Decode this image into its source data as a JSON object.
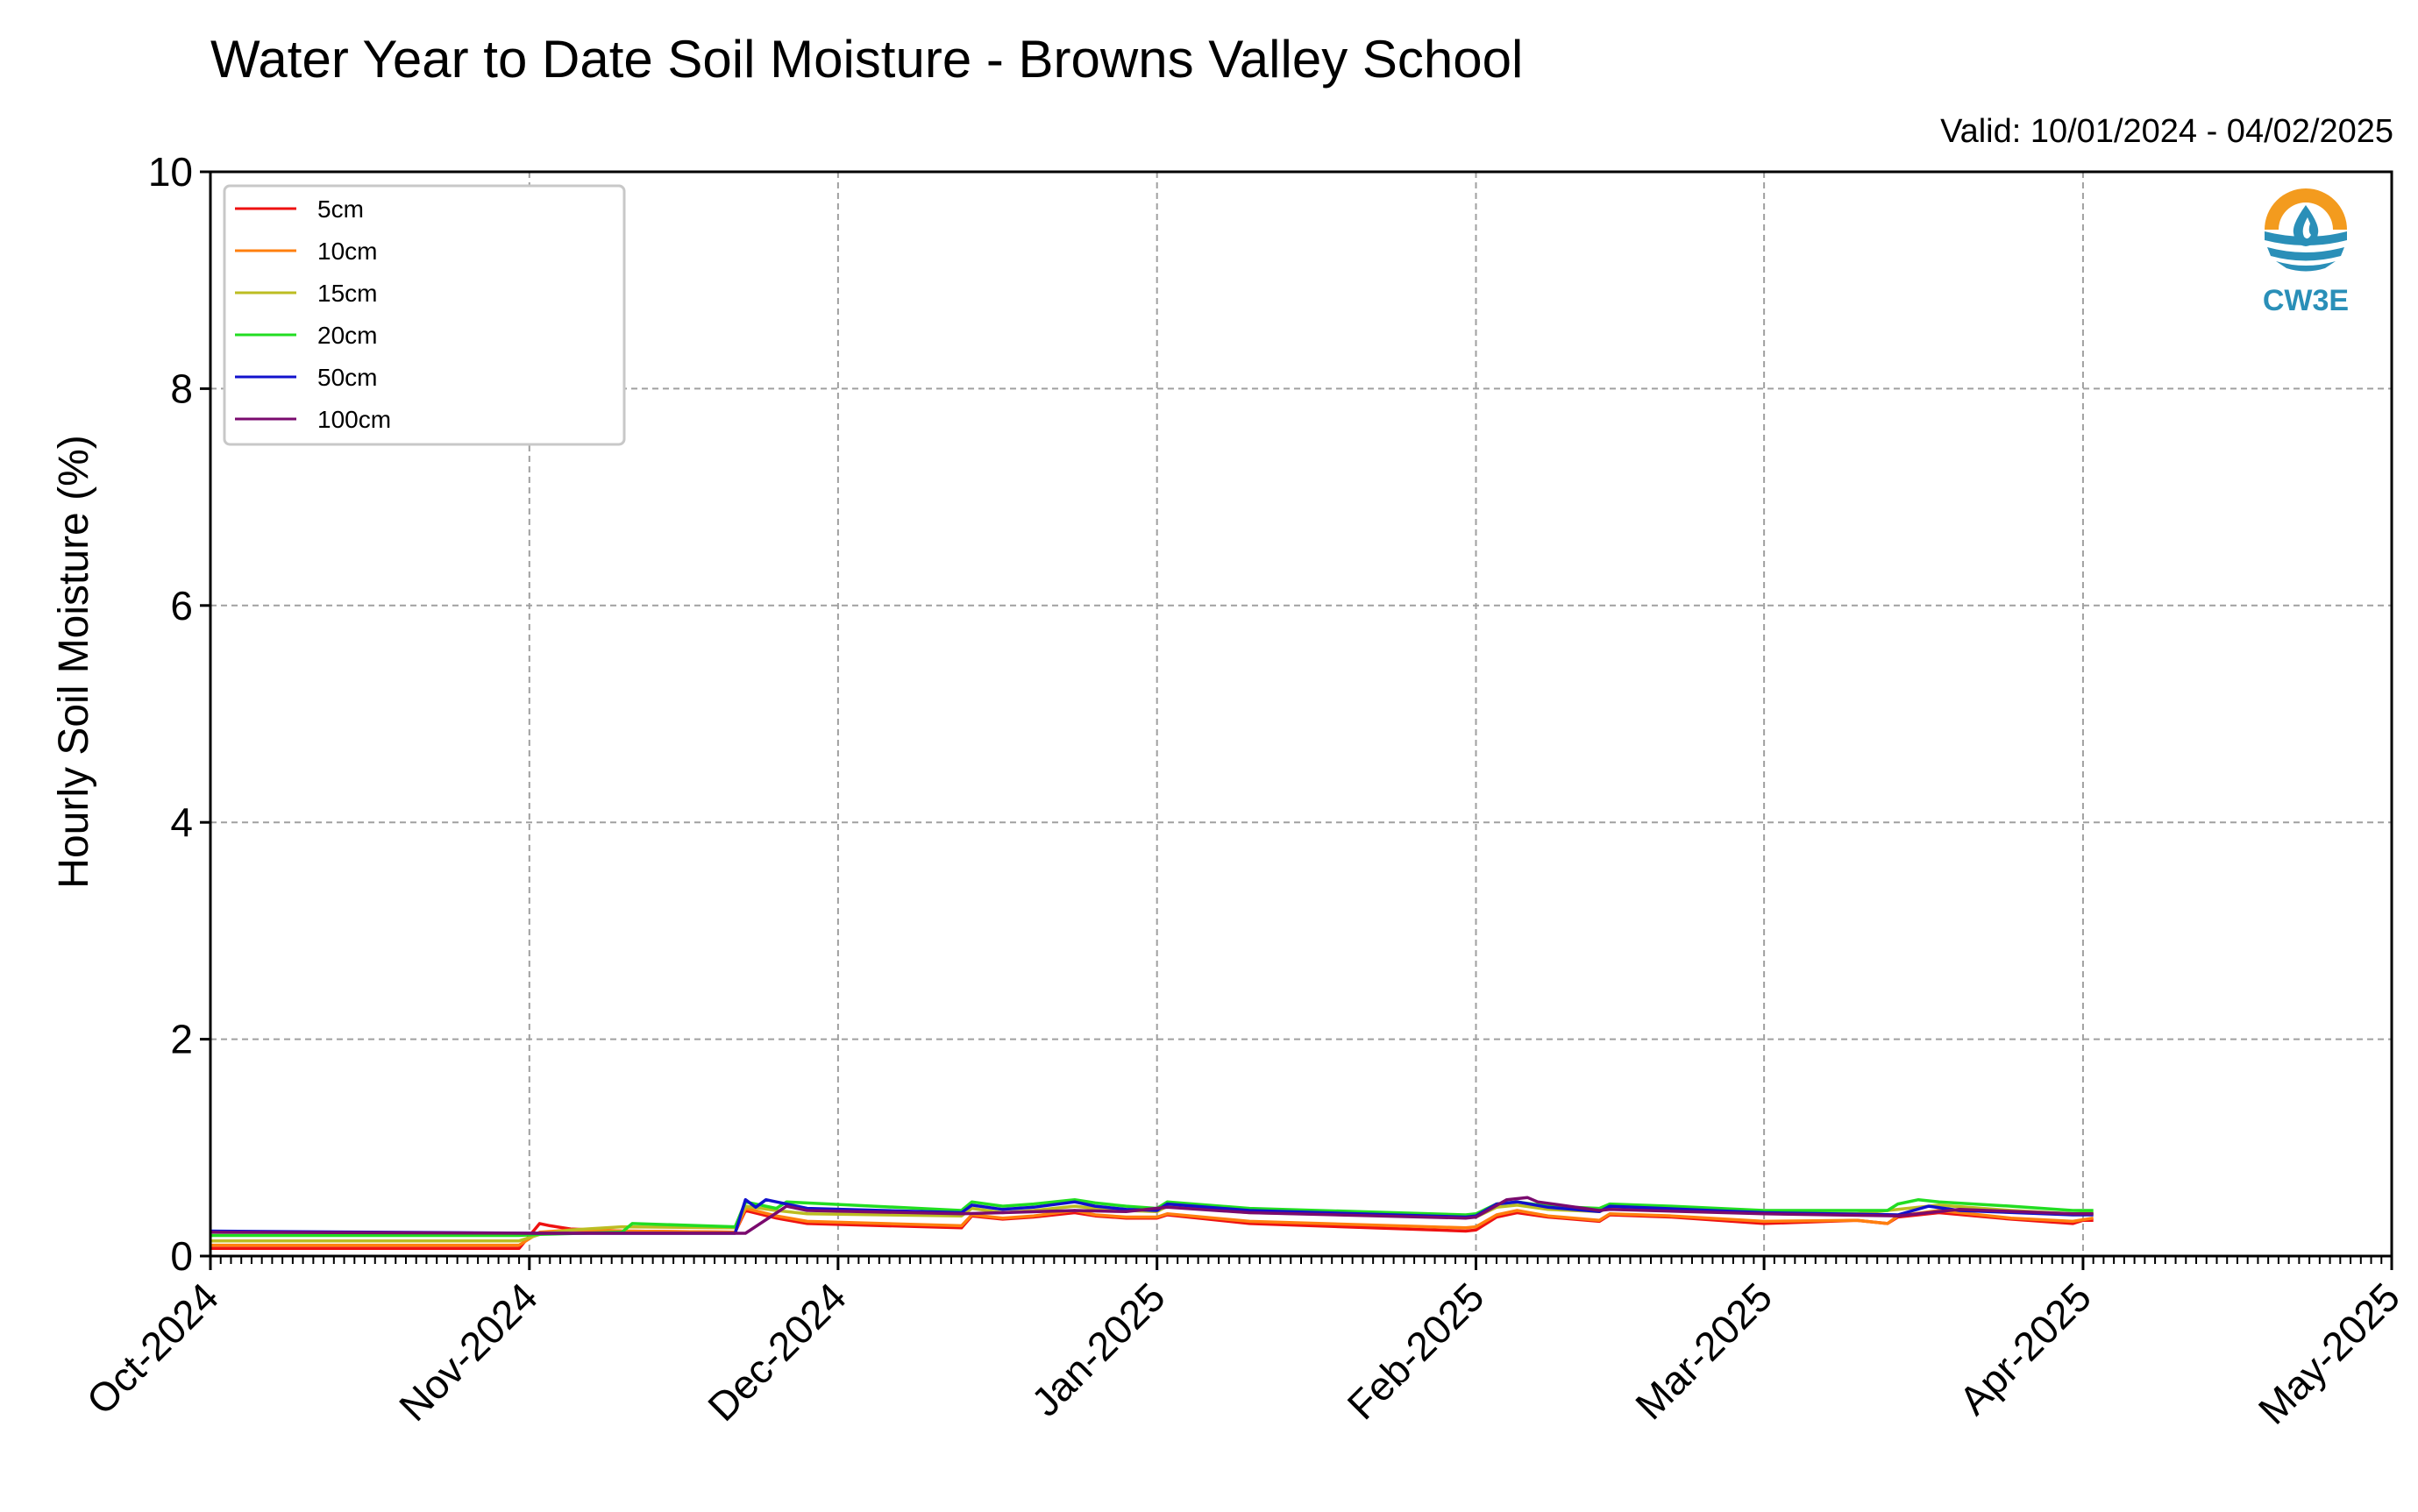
{
  "chart_data": {
    "type": "line",
    "title": "Water Year to Date Soil Moisture - Browns Valley School",
    "subtitle": "Valid: 10/01/2024 - 04/02/2025",
    "xlabel": "",
    "ylabel": "Hourly Soil Moisture (%)",
    "ylim": [
      0,
      10
    ],
    "xlim": [
      "2024-10-01",
      "2025-05-01"
    ],
    "grid": true,
    "legend_position": "top-left",
    "y_ticks": [
      "0",
      "2",
      "4",
      "6",
      "8",
      "10"
    ],
    "x_ticks": [
      {
        "label": "Oct-2024",
        "date": "2024-10-01"
      },
      {
        "label": "Nov-2024",
        "date": "2024-11-01"
      },
      {
        "label": "Dec-2024",
        "date": "2024-12-01"
      },
      {
        "label": "Jan-2025",
        "date": "2025-01-01"
      },
      {
        "label": "Feb-2025",
        "date": "2025-02-01"
      },
      {
        "label": "Mar-2025",
        "date": "2025-03-01"
      },
      {
        "label": "Apr-2025",
        "date": "2025-04-01"
      },
      {
        "label": "May-2025",
        "date": "2025-05-01"
      }
    ],
    "series": [
      {
        "name": "5cm",
        "color": "#ee1111",
        "x": [
          "2024-10-01",
          "2024-10-31",
          "2024-11-02",
          "2024-11-03",
          "2024-11-05",
          "2024-11-10",
          "2024-11-21",
          "2024-11-22",
          "2024-11-25",
          "2024-11-28",
          "2024-12-13",
          "2024-12-14",
          "2024-12-17",
          "2024-12-20",
          "2024-12-24",
          "2024-12-26",
          "2024-12-29",
          "2025-01-01",
          "2025-01-02",
          "2025-01-10",
          "2025-01-31",
          "2025-02-01",
          "2025-02-03",
          "2025-02-05",
          "2025-02-08",
          "2025-02-13",
          "2025-02-14",
          "2025-02-20",
          "2025-03-01",
          "2025-03-10",
          "2025-03-13",
          "2025-03-14",
          "2025-03-18",
          "2025-03-25",
          "2025-03-31",
          "2025-04-01",
          "2025-04-02"
        ],
        "y": [
          0.07,
          0.07,
          0.3,
          0.28,
          0.25,
          0.23,
          0.22,
          0.42,
          0.35,
          0.3,
          0.26,
          0.37,
          0.34,
          0.36,
          0.4,
          0.37,
          0.35,
          0.35,
          0.38,
          0.3,
          0.23,
          0.24,
          0.36,
          0.4,
          0.36,
          0.32,
          0.38,
          0.36,
          0.3,
          0.33,
          0.3,
          0.36,
          0.4,
          0.34,
          0.3,
          0.33,
          0.33
        ]
      },
      {
        "name": "10cm",
        "color": "#ff7f0e",
        "x": [
          "2024-10-01",
          "2024-10-31",
          "2024-11-02",
          "2024-11-05",
          "2024-11-10",
          "2024-11-21",
          "2024-11-22",
          "2024-11-25",
          "2024-11-28",
          "2024-12-13",
          "2024-12-14",
          "2024-12-17",
          "2024-12-20",
          "2024-12-24",
          "2024-12-26",
          "2024-12-29",
          "2025-01-01",
          "2025-01-02",
          "2025-01-10",
          "2025-01-31",
          "2025-02-01",
          "2025-02-03",
          "2025-02-05",
          "2025-02-08",
          "2025-02-13",
          "2025-02-14",
          "2025-02-20",
          "2025-03-01",
          "2025-03-10",
          "2025-03-13",
          "2025-03-14",
          "2025-03-18",
          "2025-03-25",
          "2025-03-31",
          "2025-04-02"
        ],
        "y": [
          0.1,
          0.1,
          0.22,
          0.24,
          0.23,
          0.22,
          0.44,
          0.37,
          0.32,
          0.28,
          0.38,
          0.35,
          0.37,
          0.42,
          0.38,
          0.36,
          0.36,
          0.39,
          0.32,
          0.26,
          0.27,
          0.38,
          0.42,
          0.37,
          0.33,
          0.39,
          0.37,
          0.32,
          0.33,
          0.3,
          0.37,
          0.42,
          0.35,
          0.32,
          0.35
        ]
      },
      {
        "name": "15cm",
        "color": "#bcbd22",
        "x": [
          "2024-10-01",
          "2024-10-31",
          "2024-11-02",
          "2024-11-05",
          "2024-11-10",
          "2024-11-21",
          "2024-11-22",
          "2024-11-25",
          "2024-11-28",
          "2024-12-13",
          "2024-12-14",
          "2024-12-17",
          "2024-12-20",
          "2024-12-24",
          "2024-12-26",
          "2024-12-29",
          "2025-01-01",
          "2025-01-02",
          "2025-01-10",
          "2025-01-31",
          "2025-02-01",
          "2025-02-03",
          "2025-02-05",
          "2025-02-08",
          "2025-02-13",
          "2025-02-14",
          "2025-02-20",
          "2025-03-01",
          "2025-03-10",
          "2025-03-14",
          "2025-03-18",
          "2025-03-25",
          "2025-03-31",
          "2025-04-02"
        ],
        "y": [
          0.14,
          0.14,
          0.2,
          0.24,
          0.27,
          0.26,
          0.46,
          0.42,
          0.39,
          0.37,
          0.44,
          0.4,
          0.42,
          0.46,
          0.44,
          0.42,
          0.41,
          0.46,
          0.4,
          0.36,
          0.36,
          0.45,
          0.47,
          0.43,
          0.41,
          0.45,
          0.43,
          0.4,
          0.39,
          0.43,
          0.47,
          0.42,
          0.39,
          0.4
        ]
      },
      {
        "name": "20cm",
        "color": "#22dd22",
        "x": [
          "2024-10-01",
          "2024-10-31",
          "2024-11-02",
          "2024-11-10",
          "2024-11-11",
          "2024-11-21",
          "2024-11-22",
          "2024-11-25",
          "2024-11-26",
          "2024-12-13",
          "2024-12-14",
          "2024-12-17",
          "2024-12-20",
          "2024-12-24",
          "2024-12-26",
          "2024-12-29",
          "2025-01-01",
          "2025-01-02",
          "2025-01-10",
          "2025-01-31",
          "2025-02-01",
          "2025-02-03",
          "2025-02-05",
          "2025-02-08",
          "2025-02-13",
          "2025-02-14",
          "2025-02-20",
          "2025-03-01",
          "2025-03-13",
          "2025-03-14",
          "2025-03-16",
          "2025-03-18",
          "2025-03-25",
          "2025-03-31",
          "2025-04-02"
        ],
        "y": [
          0.19,
          0.19,
          0.2,
          0.22,
          0.3,
          0.27,
          0.5,
          0.44,
          0.5,
          0.42,
          0.5,
          0.46,
          0.48,
          0.52,
          0.49,
          0.46,
          0.44,
          0.5,
          0.44,
          0.38,
          0.39,
          0.48,
          0.5,
          0.46,
          0.44,
          0.48,
          0.46,
          0.42,
          0.42,
          0.48,
          0.52,
          0.5,
          0.46,
          0.42,
          0.42
        ]
      },
      {
        "name": "50cm",
        "color": "#1111cc",
        "x": [
          "2024-10-01",
          "2024-11-02",
          "2024-11-21",
          "2024-11-22",
          "2024-11-23",
          "2024-11-24",
          "2024-11-28",
          "2024-12-13",
          "2024-12-14",
          "2024-12-17",
          "2024-12-20",
          "2024-12-24",
          "2024-12-26",
          "2024-12-29",
          "2025-01-01",
          "2025-01-02",
          "2025-01-10",
          "2025-01-31",
          "2025-02-01",
          "2025-02-03",
          "2025-02-05",
          "2025-02-08",
          "2025-02-13",
          "2025-02-14",
          "2025-03-01",
          "2025-03-14",
          "2025-03-17",
          "2025-03-20",
          "2025-03-31",
          "2025-04-02"
        ],
        "y": [
          0.23,
          0.21,
          0.21,
          0.52,
          0.45,
          0.52,
          0.44,
          0.4,
          0.47,
          0.43,
          0.45,
          0.5,
          0.46,
          0.43,
          0.42,
          0.48,
          0.42,
          0.36,
          0.37,
          0.48,
          0.5,
          0.45,
          0.41,
          0.46,
          0.4,
          0.38,
          0.46,
          0.42,
          0.38,
          0.38
        ]
      },
      {
        "name": "100cm",
        "color": "#7a0a6e",
        "x": [
          "2024-10-01",
          "2024-11-02",
          "2024-11-22",
          "2024-11-26",
          "2024-11-28",
          "2024-12-13",
          "2024-12-17",
          "2024-12-24",
          "2024-12-29",
          "2025-01-02",
          "2025-01-10",
          "2025-01-31",
          "2025-02-01",
          "2025-02-04",
          "2025-02-06",
          "2025-02-07",
          "2025-02-10",
          "2025-02-13",
          "2025-02-14",
          "2025-03-01",
          "2025-03-14",
          "2025-03-20",
          "2025-03-31",
          "2025-04-02"
        ],
        "y": [
          0.22,
          0.21,
          0.21,
          0.46,
          0.42,
          0.39,
          0.4,
          0.42,
          0.41,
          0.45,
          0.4,
          0.35,
          0.36,
          0.52,
          0.54,
          0.5,
          0.46,
          0.42,
          0.43,
          0.39,
          0.37,
          0.43,
          0.39,
          0.39
        ]
      }
    ]
  },
  "logo": {
    "text": "CW3E",
    "colors": {
      "orange": "#f39b1e",
      "blue": "#2a8fb8"
    }
  }
}
